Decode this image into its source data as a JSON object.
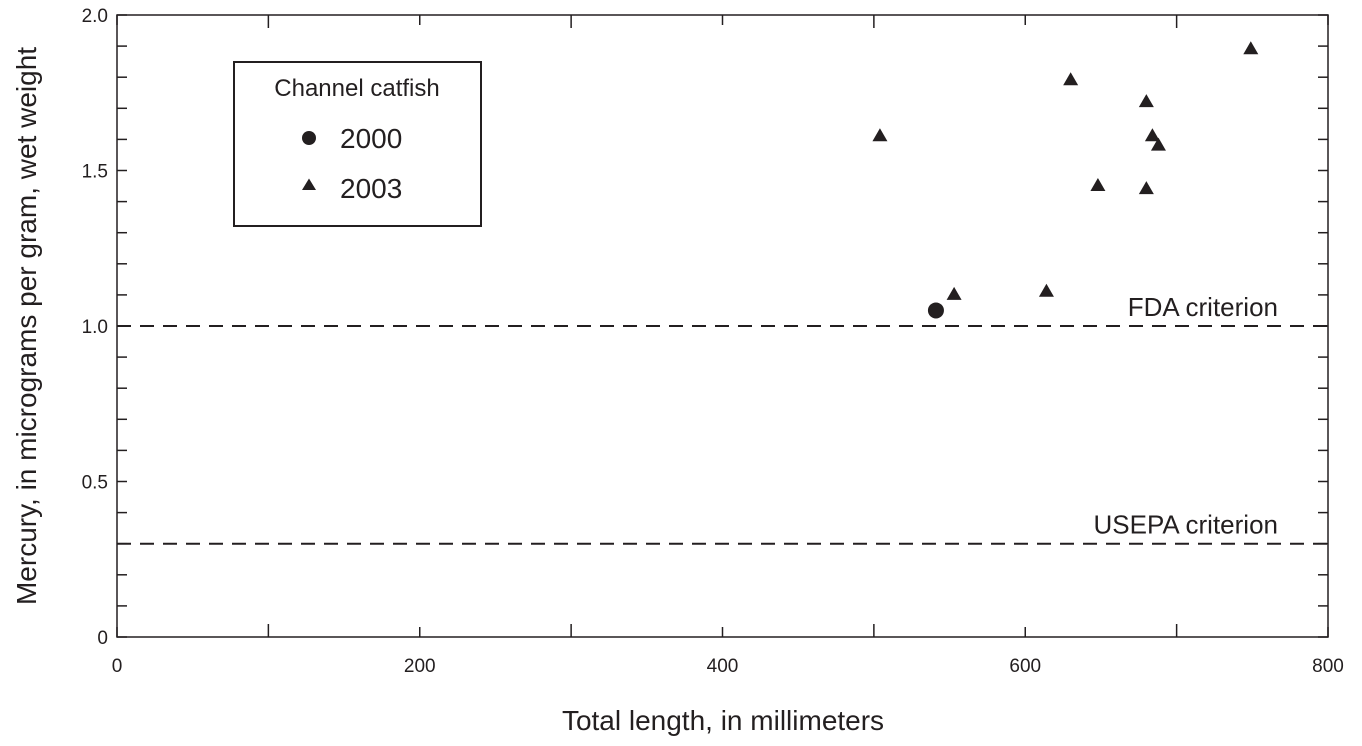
{
  "chart_data": {
    "type": "scatter",
    "xlabel": "Total length, in millimeters",
    "ylabel": "Mercury, in micrograms per gram, wet weight",
    "xlim": [
      0,
      800
    ],
    "ylim": [
      0,
      2.0
    ],
    "x_ticks": [
      0,
      200,
      400,
      600,
      800
    ],
    "x_tick_labels": [
      "0",
      "200",
      "400",
      "600",
      "800"
    ],
    "y_ticks": [
      0,
      0.5,
      1.0,
      1.5,
      2.0
    ],
    "y_tick_labels": [
      "0",
      "0.5",
      "1.0",
      "1.5",
      "2.0"
    ],
    "grid": false,
    "legend": {
      "title": "Channel catfish",
      "placement": "top-left"
    },
    "series": [
      {
        "name": "2000",
        "marker": "circle",
        "color": "#231f20",
        "points": [
          {
            "x": 541,
            "y": 1.05
          }
        ]
      },
      {
        "name": "2003",
        "marker": "triangle",
        "color": "#231f20",
        "points": [
          {
            "x": 504,
            "y": 1.61
          },
          {
            "x": 553,
            "y": 1.1
          },
          {
            "x": 614,
            "y": 1.11
          },
          {
            "x": 630,
            "y": 1.79
          },
          {
            "x": 648,
            "y": 1.45
          },
          {
            "x": 680,
            "y": 1.72
          },
          {
            "x": 680,
            "y": 1.44
          },
          {
            "x": 684,
            "y": 1.61
          },
          {
            "x": 688,
            "y": 1.58
          },
          {
            "x": 749,
            "y": 1.89
          }
        ]
      }
    ],
    "reference_lines": [
      {
        "label": "FDA criterion",
        "y": 1.0
      },
      {
        "label": "USEPA criterion",
        "y": 0.3
      }
    ]
  }
}
